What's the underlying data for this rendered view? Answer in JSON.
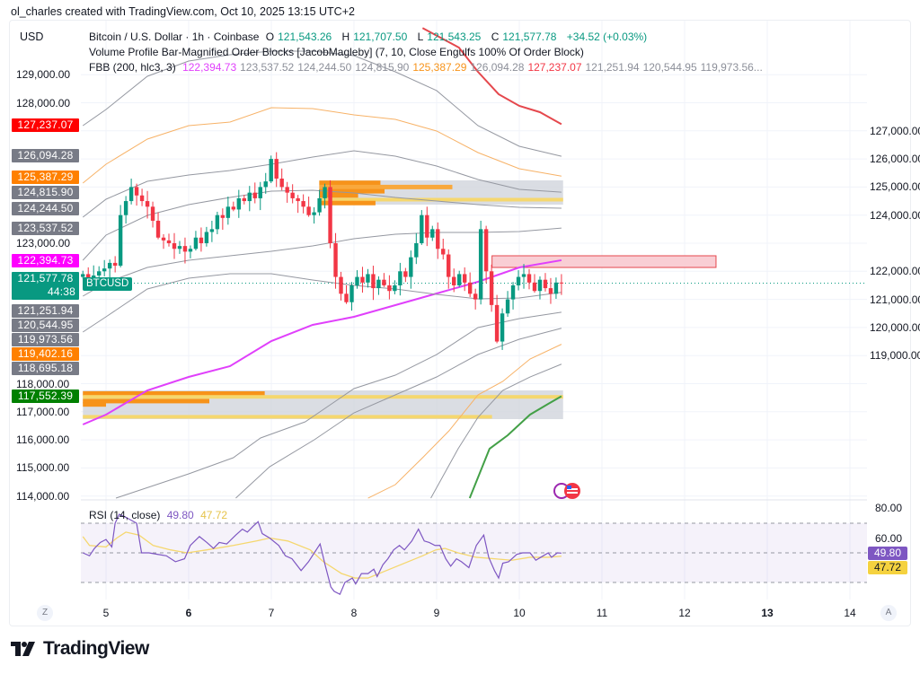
{
  "credit": "ol_charles created with TradingView.com, Oct 10, 2025 13:15 UTC+2",
  "currency": "USD",
  "legend": {
    "symbol": "Bitcoin / U.S. Dollar · 1h · Coinbase",
    "o_label": "O",
    "o": "121,543.26",
    "h_label": "H",
    "h": "121,707.50",
    "l_label": "L",
    "l": "121,543.25",
    "c_label": "C",
    "c": "121,577.78",
    "change": "+34.52 (+0.03%)",
    "indicator2": "Volume Profile Bar-Magnified Order Blocks [JacobMagleby] (7, 10, Close Engulfs 100% Of Order Block)",
    "fbb_name": "FBB (200, hlc3, 3)",
    "fbb_values": [
      {
        "text": "122,394.73",
        "color": "#e040fb"
      },
      {
        "text": "123,537.52",
        "color": "#8c8f99"
      },
      {
        "text": "124,244.50",
        "color": "#8c8f99"
      },
      {
        "text": "124,815.90",
        "color": "#8c8f99"
      },
      {
        "text": "125,387.29",
        "color": "#f7931a"
      },
      {
        "text": "126,094.28",
        "color": "#8c8f99"
      },
      {
        "text": "127,237.07",
        "color": "#f23645"
      },
      {
        "text": "121,251.94",
        "color": "#8c8f99"
      },
      {
        "text": "120,544.95",
        "color": "#8c8f99"
      },
      {
        "text": "119,973.56...",
        "color": "#8c8f99"
      }
    ]
  },
  "price_axis_ticks": [
    "129,000.00",
    "128,000.00",
    "127,000.00",
    "126,000.00",
    "125,000.00",
    "124,000.00",
    "123,000.00",
    "122,000.00",
    "121,000.00",
    "120,000.00",
    "119,000.00",
    "118,000.00",
    "117,000.00",
    "116,000.00",
    "115,000.00",
    "114,000.00"
  ],
  "price_tags": [
    {
      "text": "127,237.07",
      "color": "#ff0000"
    },
    {
      "text": "126,094.28",
      "color": "#787b86"
    },
    {
      "text": "125,387.29",
      "color": "#ff8000"
    },
    {
      "text": "124,815.90",
      "color": "#787b86"
    },
    {
      "text": "124,244.50",
      "color": "#787b86"
    },
    {
      "text": "123,537.52",
      "color": "#787b86"
    },
    {
      "text": "122,394.73",
      "color": "#ff00ff"
    },
    {
      "text": "121,577.78",
      "sub": "44:38",
      "color": "#089981"
    },
    {
      "text": "121,251.94",
      "color": "#787b86"
    },
    {
      "text": "120,544.95",
      "color": "#787b86"
    },
    {
      "text": "119,973.56",
      "color": "#787b86"
    },
    {
      "text": "119,402.16",
      "color": "#ff8000"
    },
    {
      "text": "118,695.18",
      "color": "#787b86"
    },
    {
      "text": "117,552.39",
      "color": "#008000"
    }
  ],
  "symbol_tag": "BTCUSD",
  "x_axis": {
    "zoom_button": "Z",
    "auto_button": "A",
    "labels": [
      {
        "text": "5",
        "day": 5,
        "bold": false
      },
      {
        "text": "6",
        "day": 6,
        "bold": true
      },
      {
        "text": "7",
        "day": 7,
        "bold": false
      },
      {
        "text": "8",
        "day": 8,
        "bold": false
      },
      {
        "text": "9",
        "day": 9,
        "bold": false
      },
      {
        "text": "10",
        "day": 10,
        "bold": false
      },
      {
        "text": "11",
        "day": 11,
        "bold": false
      },
      {
        "text": "12",
        "day": 12,
        "bold": false
      },
      {
        "text": "13",
        "day": 13,
        "bold": true
      },
      {
        "text": "14",
        "day": 14,
        "bold": false
      }
    ]
  },
  "rsi": {
    "name": "RSI (14, close)",
    "value": "49.80",
    "ma_value": "47.72",
    "axis_ticks": [
      "80.00",
      "60.00"
    ],
    "colors": {
      "rsi": "#7e57c2",
      "ma": "#f5d76e",
      "band": "#7e57c2"
    }
  },
  "colors": {
    "up": "#089981",
    "down": "#f23645",
    "grid": "#f0f3fa"
  },
  "brand": "TradingView",
  "chart_data": [
    {
      "type": "candlestick",
      "title": "Bitcoin / U.S. Dollar · 1h · Coinbase",
      "x_unit": "day of October 2025",
      "xlim": [
        4.72,
        14.4
      ],
      "ylim": [
        113800,
        130700
      ],
      "closes": [
        121900,
        121750,
        121850,
        122000,
        122100,
        122300,
        122200,
        124000,
        124500,
        125000,
        124700,
        124500,
        124300,
        123800,
        123200,
        123100,
        123000,
        122800,
        122900,
        122700,
        122800,
        123200,
        123000,
        123400,
        123500,
        124000,
        123900,
        124300,
        124200,
        124600,
        124500,
        124800,
        124600,
        125000,
        125200,
        126000,
        125300,
        125000,
        124800,
        124600,
        124500,
        124300,
        124000,
        124100,
        124600,
        125000,
        123000,
        121800,
        121200,
        120900,
        121500,
        121800,
        121600,
        121900,
        121400,
        121700,
        121500,
        121300,
        121500,
        122000,
        121800,
        122500,
        123000,
        124000,
        123200,
        123500,
        122800,
        122600,
        121800,
        121500,
        121900,
        121600,
        121200,
        121000,
        123500,
        122000,
        120800,
        119500,
        120500,
        121000,
        121500,
        121800,
        121900,
        121600,
        121300,
        121700,
        121400,
        121200,
        121600,
        121577.78
      ],
      "days_range": [
        4.72,
        10.51
      ],
      "bands_days": [
        4.72,
        5,
        5.5,
        6,
        6.5,
        7,
        7.5,
        8,
        8.5,
        9,
        9.5,
        10,
        10.51
      ],
      "bands": [
        {
          "name": "126,094.28",
          "color": "#9598a1",
          "values": [
            127185,
            127760,
            128943,
            129486,
            129710,
            129837,
            129837,
            129678,
            129102,
            128432,
            127185,
            126451,
            126094
          ]
        },
        {
          "name": "125,387.29",
          "color": "#f7b267",
          "values": [
            125141,
            125812,
            126706,
            127185,
            127313,
            127824,
            127793,
            127569,
            127409,
            126994,
            126227,
            125652,
            125387
          ]
        },
        {
          "name": "124,815.90",
          "color": "#9598a1",
          "values": [
            123927,
            124566,
            125205,
            125428,
            125588,
            125812,
            126067,
            126291,
            126099,
            125748,
            125268,
            124917,
            124816
          ]
        },
        {
          "name": "124,244.50",
          "color": "#9598a1",
          "values": [
            122393,
            123288,
            123990,
            124374,
            124629,
            124853,
            124885,
            124789,
            124629,
            124502,
            124374,
            124278,
            124245
          ]
        },
        {
          "name": "123,537.52",
          "color": "#9598a1",
          "values": [
            121115,
            121594,
            122137,
            122393,
            122553,
            122712,
            122904,
            123160,
            123320,
            123383,
            123383,
            123415,
            123538
          ]
        },
        {
          "name": "122,394.73",
          "color": "#e040fb",
          "width": 2,
          "values": [
            116546,
            116898,
            117760,
            118239,
            118623,
            119517,
            120093,
            120380,
            120795,
            121211,
            121626,
            122137,
            122395
          ]
        },
        {
          "name": "121,251.94",
          "color": "#9598a1",
          "values": [
            119837,
            120380,
            121371,
            121754,
            121914,
            121914,
            121690,
            121498,
            121371,
            121179,
            121019,
            121051,
            121252
          ]
        }
      ],
      "bands_partial": [
        {
          "name": "127,237.07",
          "color": "#e5484d",
          "width": 2,
          "points": [
            [
              8.83,
              130659
            ],
            [
              9.27,
              129965
            ],
            [
              9.5,
              129102
            ],
            [
              9.75,
              128304
            ],
            [
              10.0,
              127888
            ],
            [
              10.25,
              127665
            ],
            [
              10.51,
              127237
            ]
          ]
        },
        {
          "name": "120,544.95",
          "color": "#9598a1",
          "points": [
            [
              5.12,
              113926
            ],
            [
              6.0,
              114789
            ],
            [
              6.54,
              115364
            ],
            [
              6.87,
              116067
            ],
            [
              7.41,
              116642
            ],
            [
              8.0,
              117824
            ],
            [
              8.5,
              118303
            ],
            [
              9.0,
              119038
            ],
            [
              9.5,
              119997
            ],
            [
              10.0,
              120316
            ],
            [
              10.51,
              120545
            ]
          ]
        },
        {
          "name": "119,973.56",
          "color": "#9598a1",
          "points": [
            [
              6.57,
              113926
            ],
            [
              6.98,
              115044
            ],
            [
              7.52,
              116003
            ],
            [
              8.0,
              116961
            ],
            [
              8.5,
              117600
            ],
            [
              9.0,
              118239
            ],
            [
              9.5,
              119038
            ],
            [
              10.0,
              119581
            ],
            [
              10.51,
              119974
            ]
          ]
        },
        {
          "name": "119,402.16",
          "color": "#f7b267",
          "points": [
            [
              8.17,
              113926
            ],
            [
              8.5,
              114405
            ],
            [
              8.83,
              115364
            ],
            [
              9.15,
              116322
            ],
            [
              9.5,
              117600
            ],
            [
              9.8,
              118080
            ],
            [
              10.13,
              118878
            ],
            [
              10.51,
              119402
            ]
          ]
        },
        {
          "name": "118,695.18",
          "color": "#9598a1",
          "points": [
            [
              8.93,
              113926
            ],
            [
              9.26,
              115683
            ],
            [
              9.5,
              116802
            ],
            [
              9.8,
              117760
            ],
            [
              10.13,
              118239
            ],
            [
              10.51,
              118695
            ]
          ]
        },
        {
          "name": "117,552.39",
          "color": "#43a047",
          "width": 2,
          "points": [
            [
              9.4,
              113926
            ],
            [
              9.64,
              115683
            ],
            [
              9.86,
              116163
            ],
            [
              10.13,
              116898
            ],
            [
              10.35,
              117281
            ],
            [
              10.51,
              117552
            ]
          ]
        }
      ],
      "order_blocks": [
        {
          "kind": "bearish",
          "day_from": 7.58,
          "day_to": 10.53,
          "top": 125237,
          "bottom": 124374,
          "fill": "#d1d4dc"
        },
        {
          "kind": "bearish-red",
          "day_from": 9.67,
          "day_to": 12.38,
          "top": 122553,
          "bottom": 122137,
          "fill": "#f8c9cf",
          "stroke": "#e5484d"
        },
        {
          "kind": "bullish",
          "day_from": 4.72,
          "day_to": 10.53,
          "top": 117760,
          "bottom": 116738,
          "fill": "#d1d4dc"
        }
      ],
      "volume_profile_rows": [
        {
          "block": 0,
          "price": 125150,
          "day_to": 8.32,
          "color": "#f7931a"
        },
        {
          "block": 0,
          "price": 125000,
          "day_to": 9.19,
          "color": "#f9a83c"
        },
        {
          "block": 0,
          "price": 124850,
          "day_to": 8.37,
          "color": "#f7931a"
        },
        {
          "block": 0,
          "price": 124700,
          "day_to": 8.05,
          "color": "#f7931a"
        },
        {
          "block": 0,
          "price": 124550,
          "day_to": 10.53,
          "color": "#f5d76e"
        },
        {
          "block": 0,
          "price": 124430,
          "day_to": 8.26,
          "color": "#f7931a"
        },
        {
          "block": 2,
          "price": 117650,
          "day_to": 6.92,
          "color": "#f7931a"
        },
        {
          "block": 2,
          "price": 117530,
          "day_to": 10.53,
          "color": "#f5d76e"
        },
        {
          "block": 2,
          "price": 117380,
          "day_to": 6.25,
          "color": "#f7931a"
        },
        {
          "block": 2,
          "price": 117260,
          "day_to": 5.0,
          "color": "#f7931a"
        },
        {
          "block": 2,
          "price": 116820,
          "day_to": 9.67,
          "color": "#f5d76e"
        }
      ]
    },
    {
      "type": "line",
      "title": "RSI (14, close)",
      "ylim": [
        20,
        82
      ],
      "levels": [
        70,
        50,
        30
      ],
      "series": [
        {
          "name": "RSI",
          "x": [
            4.72,
            4.8,
            4.86,
            4.93,
            5.0,
            5.07,
            5.11,
            5.16,
            5.24,
            5.37,
            5.43,
            5.52,
            5.62,
            5.73,
            5.84,
            5.95,
            6.02,
            6.13,
            6.22,
            6.3,
            6.37,
            6.46,
            6.57,
            6.65,
            6.71,
            6.78,
            6.84,
            6.89,
            6.98,
            7.09,
            7.17,
            7.25,
            7.36,
            7.45,
            7.52,
            7.59,
            7.65,
            7.72,
            7.76,
            7.83,
            7.89,
            7.98,
            8.02,
            8.09,
            8.17,
            8.24,
            8.28,
            8.35,
            8.41,
            8.48,
            8.55,
            8.61,
            8.7,
            8.78,
            8.85,
            8.91,
            8.98,
            9.04,
            9.11,
            9.17,
            9.24,
            9.3,
            9.39,
            9.48,
            9.57,
            9.63,
            9.7,
            9.75,
            9.8,
            9.87,
            9.97,
            10.04,
            10.13,
            10.2,
            10.26,
            10.35,
            10.39,
            10.46,
            10.51
          ],
          "values": [
            50,
            48,
            53,
            57,
            59,
            54,
            70,
            76,
            74,
            70,
            50,
            50,
            49,
            48,
            44,
            46,
            55,
            61,
            57,
            53,
            57,
            56,
            62,
            66,
            64,
            68,
            71,
            63,
            60,
            55,
            48,
            46,
            38,
            44,
            50,
            56,
            42,
            27,
            24,
            22,
            30,
            33,
            29,
            36,
            36,
            39,
            34,
            42,
            46,
            52,
            55,
            52,
            58,
            66,
            58,
            57,
            55,
            55,
            46,
            41,
            46,
            44,
            40,
            55,
            62,
            47,
            38,
            33,
            43,
            44,
            49,
            50,
            50,
            45,
            47,
            50,
            47,
            50,
            49.8
          ]
        },
        {
          "name": "MA",
          "x": [
            4.72,
            4.8,
            5.0,
            5.13,
            5.24,
            5.4,
            5.57,
            5.78,
            5.98,
            6.22,
            6.54,
            6.82,
            6.98,
            7.2,
            7.47,
            7.63,
            7.85,
            8.01,
            8.17,
            8.39,
            8.61,
            8.83,
            8.99,
            9.1,
            9.26,
            9.48,
            9.7,
            9.91,
            10.13,
            10.35,
            10.51
          ],
          "values": [
            61,
            55,
            54,
            60,
            64,
            62,
            55,
            52,
            50,
            52,
            55,
            58,
            60,
            58,
            52,
            44,
            36,
            33,
            33,
            38,
            43,
            48,
            52,
            53,
            50,
            47,
            46,
            45,
            47,
            47,
            47.72
          ]
        }
      ]
    }
  ]
}
